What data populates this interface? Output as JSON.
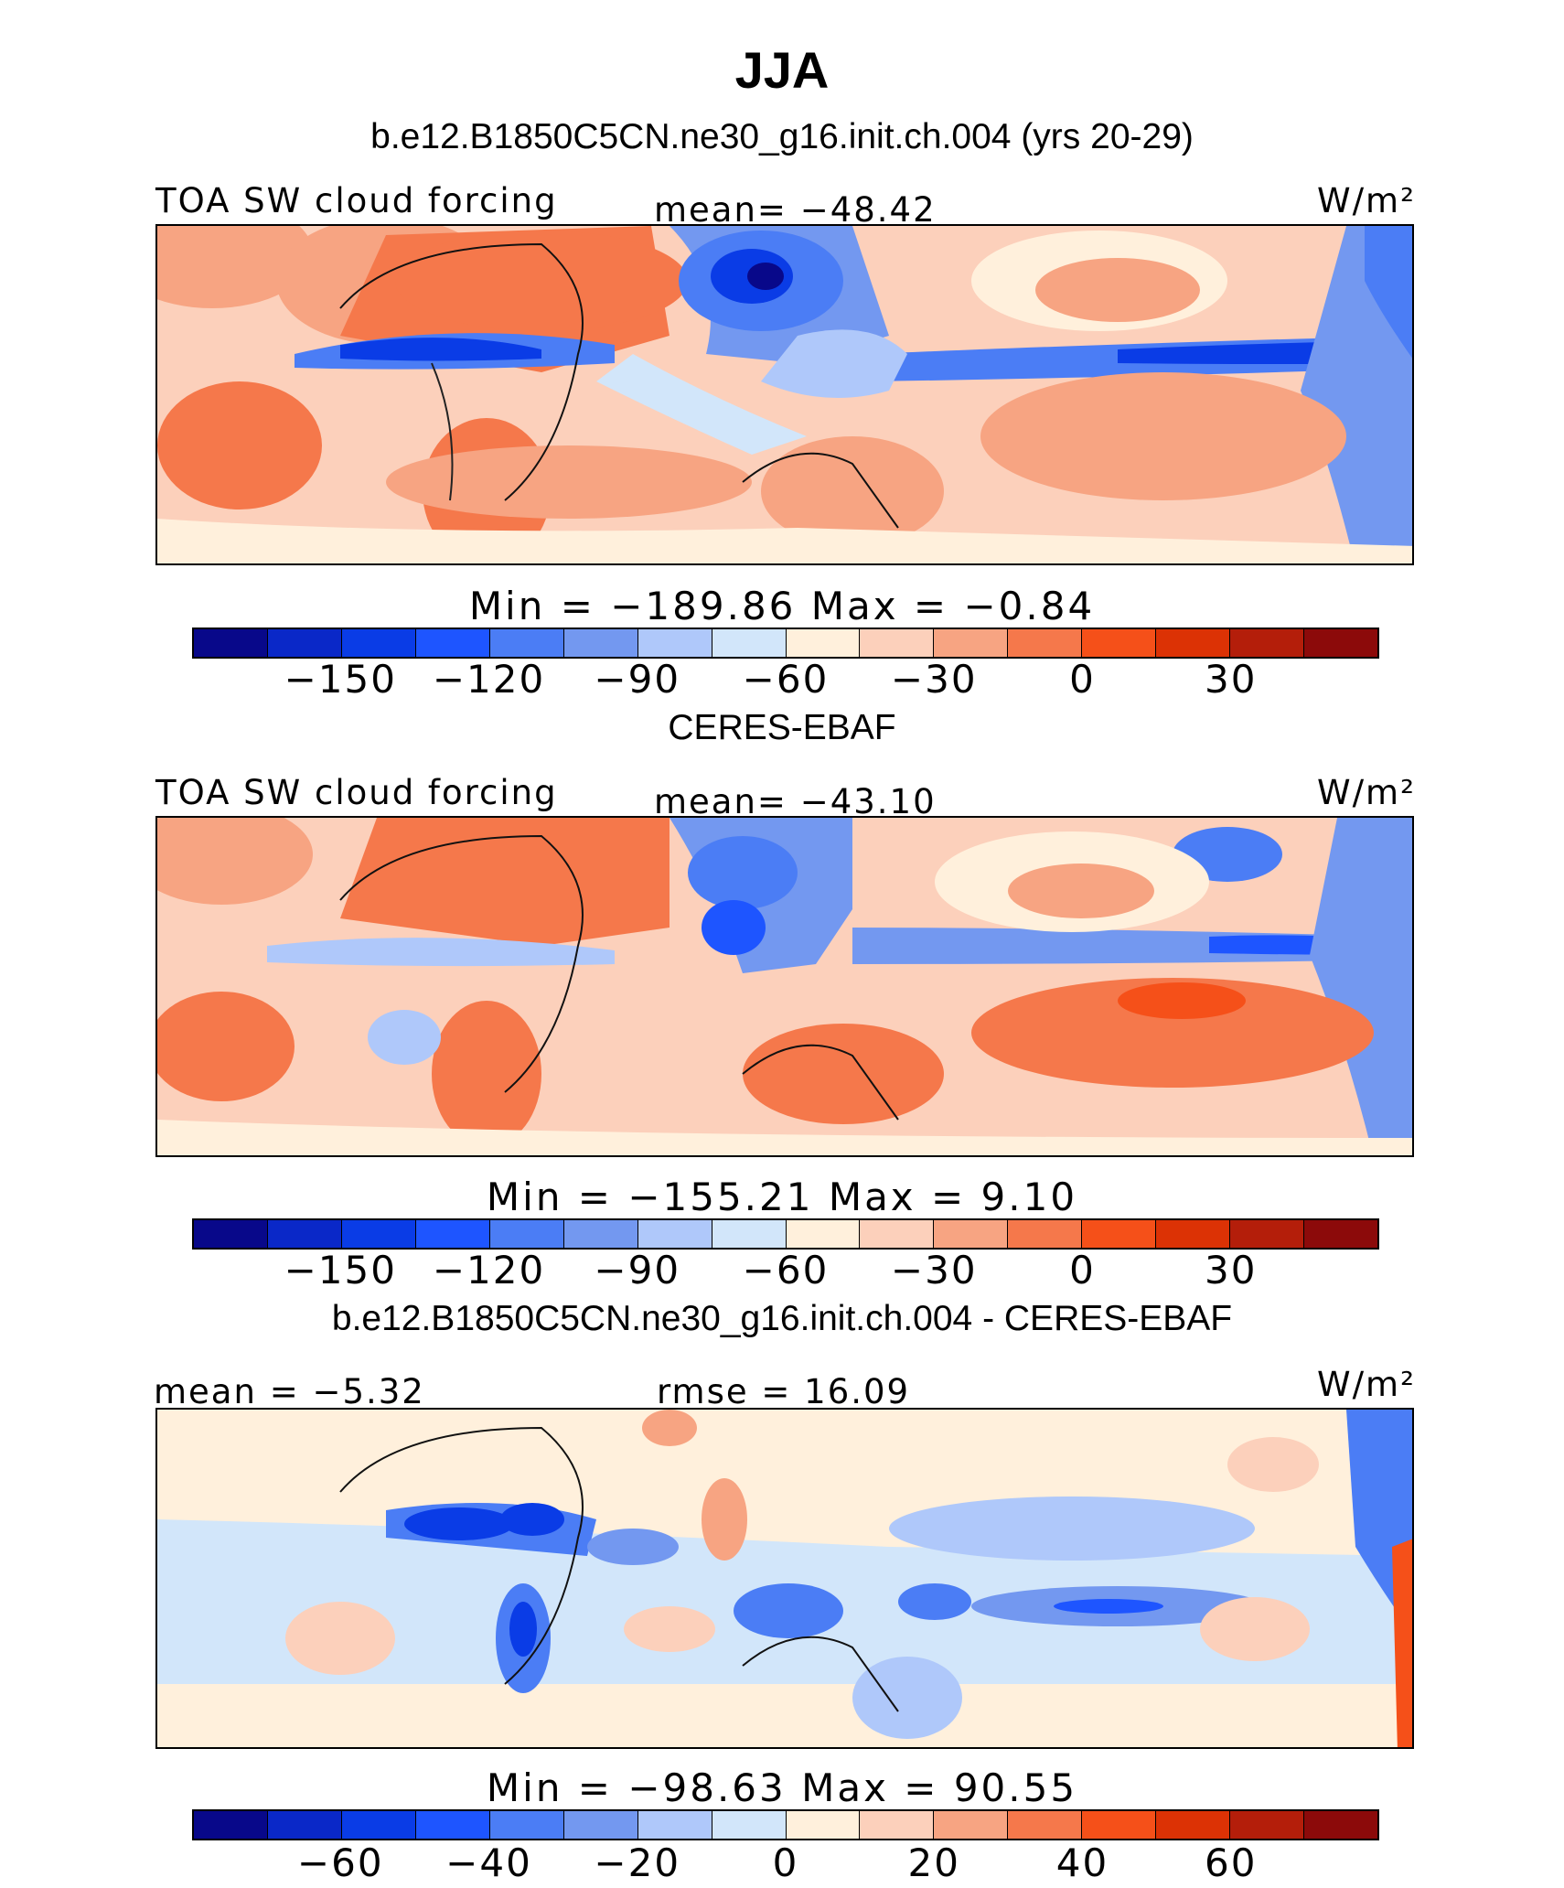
{
  "title": "JJA",
  "colors": [
    "#08088a",
    "#0a28c8",
    "#0a3ce6",
    "#1e55ff",
    "#4b7df5",
    "#7398f0",
    "#afc8fa",
    "#d2e6fa",
    "#fff0dc",
    "#fcd0bb",
    "#f7a482",
    "#f5784b",
    "#f55019",
    "#dc3205",
    "#b41e0a",
    "#8c0a0a"
  ],
  "panels": [
    {
      "heading": "b.e12.B1850C5CN.ne30_g16.init.ch.004 (yrs 20-29)",
      "left_label": "TOA SW cloud forcing",
      "center_label": "mean= −48.42",
      "units": "W/m²",
      "min_max": "Min  = −189.86  Max  =  −0.84",
      "colorbar_ticks": [
        "−150",
        "−120",
        "−90",
        "−60",
        "−30",
        "0",
        "30"
      ]
    },
    {
      "heading": "CERES-EBAF",
      "left_label": "TOA SW cloud forcing",
      "center_label": "mean= −43.10",
      "units": "W/m²",
      "min_max": "Min  = −155.21  Max  =   9.10",
      "colorbar_ticks": [
        "−150",
        "−120",
        "−90",
        "−60",
        "−30",
        "0",
        "30"
      ]
    },
    {
      "heading": "b.e12.B1850C5CN.ne30_g16.init.ch.004 - CERES-EBAF",
      "left_label": "mean =   −5.32",
      "center_label": "rmse =   16.09",
      "units": "W/m²",
      "min_max": "Min  = −98.63  Max  =   90.55",
      "colorbar_ticks": [
        "−60",
        "−40",
        "−20",
        "0",
        "20",
        "40",
        "60"
      ]
    }
  ],
  "chart_data": [
    {
      "type": "heatmap",
      "title": "TOA SW cloud forcing",
      "units": "W/m²",
      "mean": -48.42,
      "min": -189.86,
      "max": -0.84,
      "colorbar_ticks": [
        -150,
        -120,
        -90,
        -60,
        -30,
        0,
        30
      ]
    },
    {
      "type": "heatmap",
      "title": "TOA SW cloud forcing",
      "units": "W/m²",
      "mean": -43.1,
      "min": -155.21,
      "max": 9.1,
      "colorbar_ticks": [
        -150,
        -120,
        -90,
        -60,
        -30,
        0,
        30
      ]
    },
    {
      "type": "heatmap",
      "title": "",
      "units": "W/m²",
      "mean": -5.32,
      "rmse": 16.09,
      "min": -98.63,
      "max": 90.55,
      "colorbar_ticks": [
        -60,
        -40,
        -20,
        0,
        20,
        40,
        60
      ]
    }
  ]
}
